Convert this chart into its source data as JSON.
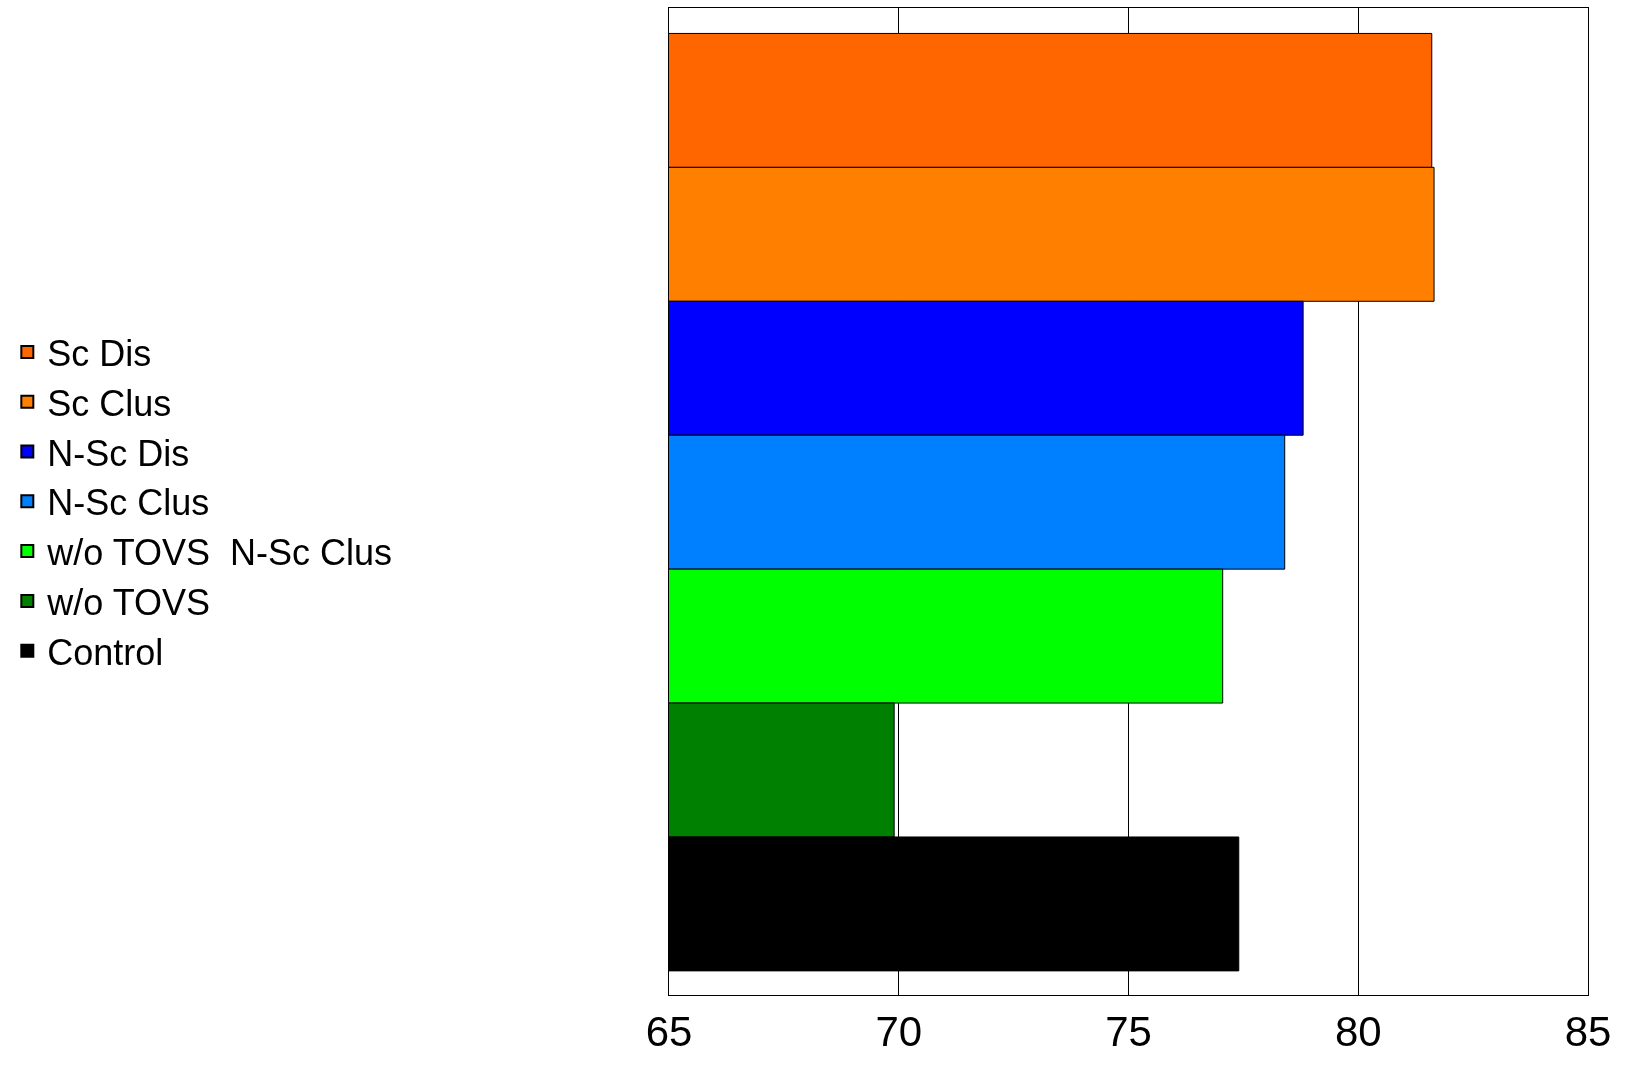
{
  "chart_data": {
    "type": "bar",
    "orientation": "horizontal",
    "categories": [
      null,
      null,
      null,
      null,
      null,
      null,
      null
    ],
    "series": [
      {
        "name": "Sc Dis",
        "color": "#ff6600",
        "values": [
          81.6,
          null,
          null,
          null,
          null,
          null,
          null
        ]
      },
      {
        "name": "Sc Clus",
        "color": "#ff8000",
        "values": [
          null,
          81.65,
          null,
          null,
          null,
          null,
          null
        ]
      },
      {
        "name": "N-Sc Dis",
        "color": "#0000ff",
        "values": [
          null,
          null,
          78.8,
          null,
          null,
          null,
          null
        ]
      },
      {
        "name": "N-Sc Clus",
        "color": "#0080ff",
        "values": [
          null,
          null,
          null,
          78.4,
          null,
          null,
          null
        ]
      },
      {
        "name": "w/o TOVS  N-Sc Clus",
        "color": "#00ff00",
        "values": [
          null,
          null,
          null,
          null,
          77.05,
          null,
          null
        ]
      },
      {
        "name": "w/o TOVS",
        "color": "#008000",
        "values": [
          null,
          null,
          null,
          null,
          null,
          69.9,
          null
        ]
      },
      {
        "name": "Control",
        "color": "#000000",
        "values": [
          null,
          null,
          null,
          null,
          null,
          null,
          77.4
        ]
      }
    ],
    "xlim": [
      65,
      85
    ],
    "xticks": [
      65,
      70,
      75,
      80,
      85
    ],
    "grid": "x",
    "legend": "left"
  }
}
